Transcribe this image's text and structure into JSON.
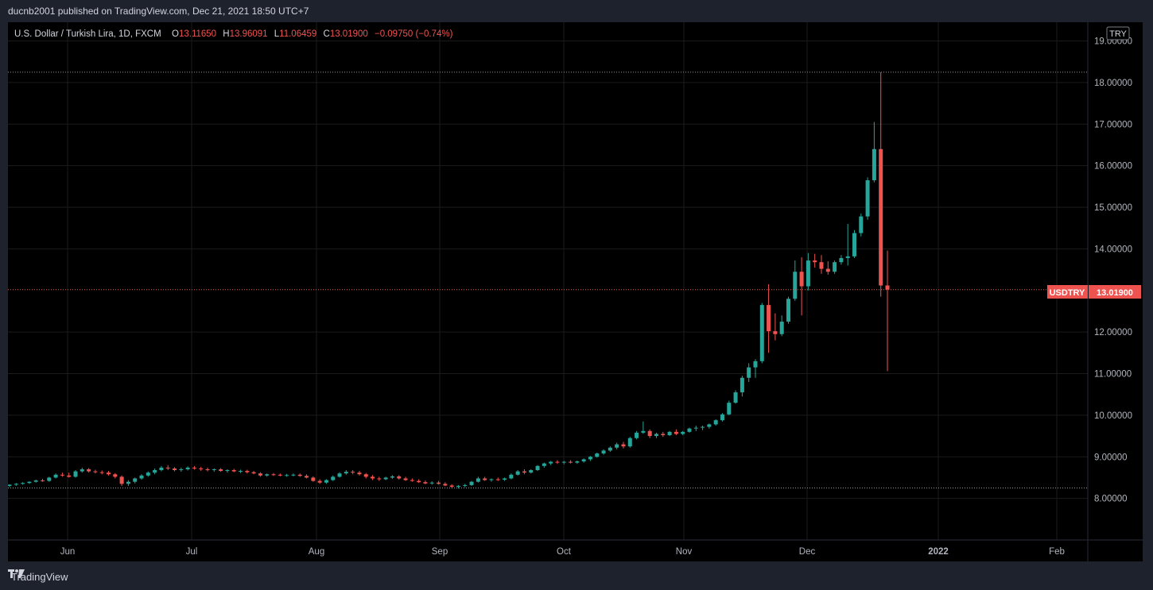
{
  "header": {
    "publish_info": "ducnb2001 published on TradingView.com, Dec 21, 2021 18:50 UTC+7"
  },
  "legend": {
    "symbol": "U.S. Dollar / Turkish Lira, 1D, FXCM",
    "o_label": "O",
    "o_value": "13.11650",
    "h_label": "H",
    "h_value": "13.96091",
    "l_label": "L",
    "l_value": "11.06459",
    "c_label": "C",
    "c_value": "13.01900",
    "change": "−0.09750 (−0.74%)"
  },
  "currency_button": "TRY",
  "price_tag": {
    "symbol": "USDTRY",
    "value": "13.01900"
  },
  "footer": {
    "brand": "TradingView"
  },
  "colors": {
    "up": "#26a69a",
    "down": "#ef5350",
    "grid": "#1b1b1b",
    "axis_text": "#b2b5be",
    "background": "#000000"
  },
  "chart_data": {
    "type": "candlestick",
    "y_ticks": [
      "19.00000",
      "18.00000",
      "17.00000",
      "16.00000",
      "15.00000",
      "14.00000",
      "12.00000",
      "11.00000",
      "10.00000",
      "9.00000",
      "8.00000"
    ],
    "y_range": [
      7.0,
      19.45
    ],
    "x_ticks": [
      "Jun",
      "Jul",
      "Aug",
      "Sep",
      "Oct",
      "Nov",
      "Dec",
      "2022",
      "Feb"
    ],
    "dotted_levels": [
      18.25,
      13.019,
      8.25
    ],
    "ohlc": [
      [
        8.3,
        8.34,
        8.27,
        8.33
      ],
      [
        8.33,
        8.37,
        8.3,
        8.35
      ],
      [
        8.35,
        8.39,
        8.33,
        8.37
      ],
      [
        8.37,
        8.41,
        8.35,
        8.4
      ],
      [
        8.4,
        8.45,
        8.38,
        8.43
      ],
      [
        8.43,
        8.47,
        8.4,
        8.42
      ],
      [
        8.42,
        8.52,
        8.4,
        8.5
      ],
      [
        8.5,
        8.6,
        8.48,
        8.57
      ],
      [
        8.57,
        8.62,
        8.52,
        8.55
      ],
      [
        8.55,
        8.62,
        8.5,
        8.52
      ],
      [
        8.52,
        8.68,
        8.5,
        8.65
      ],
      [
        8.65,
        8.74,
        8.62,
        8.7
      ],
      [
        8.7,
        8.73,
        8.62,
        8.65
      ],
      [
        8.65,
        8.69,
        8.6,
        8.63
      ],
      [
        8.63,
        8.67,
        8.58,
        8.62
      ],
      [
        8.62,
        8.66,
        8.55,
        8.58
      ],
      [
        8.58,
        8.61,
        8.48,
        8.52
      ],
      [
        8.52,
        8.55,
        8.3,
        8.35
      ],
      [
        8.35,
        8.44,
        8.3,
        8.4
      ],
      [
        8.4,
        8.5,
        8.36,
        8.48
      ],
      [
        8.48,
        8.58,
        8.45,
        8.55
      ],
      [
        8.55,
        8.65,
        8.52,
        8.62
      ],
      [
        8.62,
        8.72,
        8.58,
        8.68
      ],
      [
        8.68,
        8.78,
        8.65,
        8.74
      ],
      [
        8.74,
        8.8,
        8.68,
        8.72
      ],
      [
        8.72,
        8.75,
        8.65,
        8.68
      ],
      [
        8.68,
        8.74,
        8.64,
        8.7
      ],
      [
        8.7,
        8.77,
        8.67,
        8.74
      ],
      [
        8.74,
        8.78,
        8.69,
        8.72
      ],
      [
        8.72,
        8.76,
        8.66,
        8.7
      ],
      [
        8.7,
        8.74,
        8.65,
        8.68
      ],
      [
        8.68,
        8.72,
        8.64,
        8.7
      ],
      [
        8.7,
        8.73,
        8.64,
        8.66
      ],
      [
        8.66,
        8.7,
        8.62,
        8.68
      ],
      [
        8.68,
        8.71,
        8.63,
        8.65
      ],
      [
        8.65,
        8.69,
        8.61,
        8.66
      ],
      [
        8.66,
        8.69,
        8.6,
        8.63
      ],
      [
        8.63,
        8.66,
        8.58,
        8.6
      ],
      [
        8.6,
        8.63,
        8.52,
        8.55
      ],
      [
        8.55,
        8.6,
        8.52,
        8.58
      ],
      [
        8.58,
        8.61,
        8.54,
        8.57
      ],
      [
        8.57,
        8.6,
        8.53,
        8.55
      ],
      [
        8.55,
        8.59,
        8.52,
        8.56
      ],
      [
        8.56,
        8.6,
        8.53,
        8.57
      ],
      [
        8.57,
        8.6,
        8.52,
        8.54
      ],
      [
        8.54,
        8.58,
        8.48,
        8.5
      ],
      [
        8.5,
        8.53,
        8.4,
        8.42
      ],
      [
        8.42,
        8.46,
        8.35,
        8.38
      ],
      [
        8.38,
        8.46,
        8.35,
        8.44
      ],
      [
        8.44,
        8.55,
        8.42,
        8.52
      ],
      [
        8.52,
        8.63,
        8.5,
        8.6
      ],
      [
        8.6,
        8.68,
        8.57,
        8.64
      ],
      [
        8.64,
        8.68,
        8.58,
        8.62
      ],
      [
        8.62,
        8.66,
        8.55,
        8.58
      ],
      [
        8.58,
        8.61,
        8.48,
        8.52
      ],
      [
        8.52,
        8.56,
        8.44,
        8.48
      ],
      [
        8.48,
        8.52,
        8.42,
        8.46
      ],
      [
        8.46,
        8.52,
        8.44,
        8.5
      ],
      [
        8.5,
        8.56,
        8.47,
        8.53
      ],
      [
        8.53,
        8.56,
        8.45,
        8.48
      ],
      [
        8.48,
        8.52,
        8.42,
        8.44
      ],
      [
        8.44,
        8.48,
        8.4,
        8.42
      ],
      [
        8.42,
        8.46,
        8.37,
        8.39
      ],
      [
        8.39,
        8.43,
        8.34,
        8.36
      ],
      [
        8.36,
        8.41,
        8.33,
        8.38
      ],
      [
        8.38,
        8.42,
        8.33,
        8.35
      ],
      [
        8.35,
        8.39,
        8.29,
        8.31
      ],
      [
        8.31,
        8.34,
        8.25,
        8.28
      ],
      [
        8.28,
        8.32,
        8.24,
        8.3
      ],
      [
        8.3,
        8.35,
        8.27,
        8.32
      ],
      [
        8.32,
        8.42,
        8.3,
        8.4
      ],
      [
        8.4,
        8.52,
        8.38,
        8.48
      ],
      [
        8.48,
        8.52,
        8.42,
        8.44
      ],
      [
        8.44,
        8.48,
        8.4,
        8.46
      ],
      [
        8.46,
        8.5,
        8.42,
        8.45
      ],
      [
        8.45,
        8.5,
        8.42,
        8.48
      ],
      [
        8.48,
        8.6,
        8.46,
        8.57
      ],
      [
        8.57,
        8.68,
        8.55,
        8.65
      ],
      [
        8.65,
        8.7,
        8.58,
        8.62
      ],
      [
        8.62,
        8.7,
        8.6,
        8.68
      ],
      [
        8.68,
        8.8,
        8.66,
        8.78
      ],
      [
        8.78,
        8.86,
        8.74,
        8.84
      ],
      [
        8.84,
        8.9,
        8.8,
        8.88
      ],
      [
        8.88,
        8.92,
        8.83,
        8.86
      ],
      [
        8.86,
        8.9,
        8.82,
        8.88
      ],
      [
        8.88,
        8.92,
        8.84,
        8.86
      ],
      [
        8.86,
        8.91,
        8.83,
        8.89
      ],
      [
        8.89,
        8.96,
        8.86,
        8.94
      ],
      [
        8.94,
        9.02,
        8.9,
        9.0
      ],
      [
        9.0,
        9.1,
        8.98,
        9.08
      ],
      [
        9.08,
        9.18,
        9.05,
        9.15
      ],
      [
        9.15,
        9.25,
        9.12,
        9.22
      ],
      [
        9.22,
        9.34,
        9.18,
        9.3
      ],
      [
        9.3,
        9.36,
        9.2,
        9.25
      ],
      [
        9.25,
        9.48,
        9.22,
        9.45
      ],
      [
        9.45,
        9.62,
        9.42,
        9.58
      ],
      [
        9.58,
        9.85,
        9.55,
        9.62
      ],
      [
        9.62,
        9.66,
        9.45,
        9.5
      ],
      [
        9.5,
        9.58,
        9.45,
        9.55
      ],
      [
        9.55,
        9.6,
        9.48,
        9.52
      ],
      [
        9.52,
        9.62,
        9.5,
        9.6
      ],
      [
        9.6,
        9.66,
        9.52,
        9.55
      ],
      [
        9.55,
        9.62,
        9.52,
        9.6
      ],
      [
        9.6,
        9.7,
        9.58,
        9.68
      ],
      [
        9.68,
        9.75,
        9.62,
        9.7
      ],
      [
        9.7,
        9.75,
        9.64,
        9.72
      ],
      [
        9.72,
        9.8,
        9.68,
        9.78
      ],
      [
        9.78,
        9.9,
        9.75,
        9.88
      ],
      [
        9.88,
        10.05,
        9.85,
        10.02
      ],
      [
        10.02,
        10.35,
        10.0,
        10.3
      ],
      [
        10.3,
        10.6,
        10.28,
        10.55
      ],
      [
        10.55,
        10.95,
        10.45,
        10.9
      ],
      [
        10.9,
        11.25,
        10.8,
        11.15
      ],
      [
        11.15,
        11.35,
        10.9,
        11.3
      ],
      [
        11.3,
        12.7,
        11.25,
        12.65
      ],
      [
        12.65,
        13.15,
        11.5,
        12.02
      ],
      [
        12.02,
        12.45,
        11.8,
        11.95
      ],
      [
        11.95,
        12.4,
        11.9,
        12.25
      ],
      [
        12.25,
        12.85,
        12.2,
        12.8
      ],
      [
        12.8,
        13.72,
        12.75,
        13.45
      ],
      [
        13.45,
        13.8,
        12.4,
        13.1
      ],
      [
        13.1,
        13.9,
        13.0,
        13.72
      ],
      [
        13.72,
        13.88,
        13.55,
        13.68
      ],
      [
        13.68,
        13.85,
        13.4,
        13.52
      ],
      [
        13.52,
        13.7,
        13.38,
        13.45
      ],
      [
        13.45,
        13.72,
        13.4,
        13.68
      ],
      [
        13.68,
        13.85,
        13.62,
        13.78
      ],
      [
        13.78,
        14.6,
        13.6,
        13.82
      ],
      [
        13.82,
        14.45,
        13.78,
        14.38
      ],
      [
        14.38,
        14.85,
        14.3,
        14.78
      ],
      [
        14.78,
        15.72,
        14.7,
        15.65
      ],
      [
        15.65,
        17.05,
        15.6,
        16.4
      ],
      [
        16.4,
        18.25,
        12.85,
        13.12
      ],
      [
        13.12,
        13.96,
        11.06,
        13.02
      ]
    ]
  }
}
